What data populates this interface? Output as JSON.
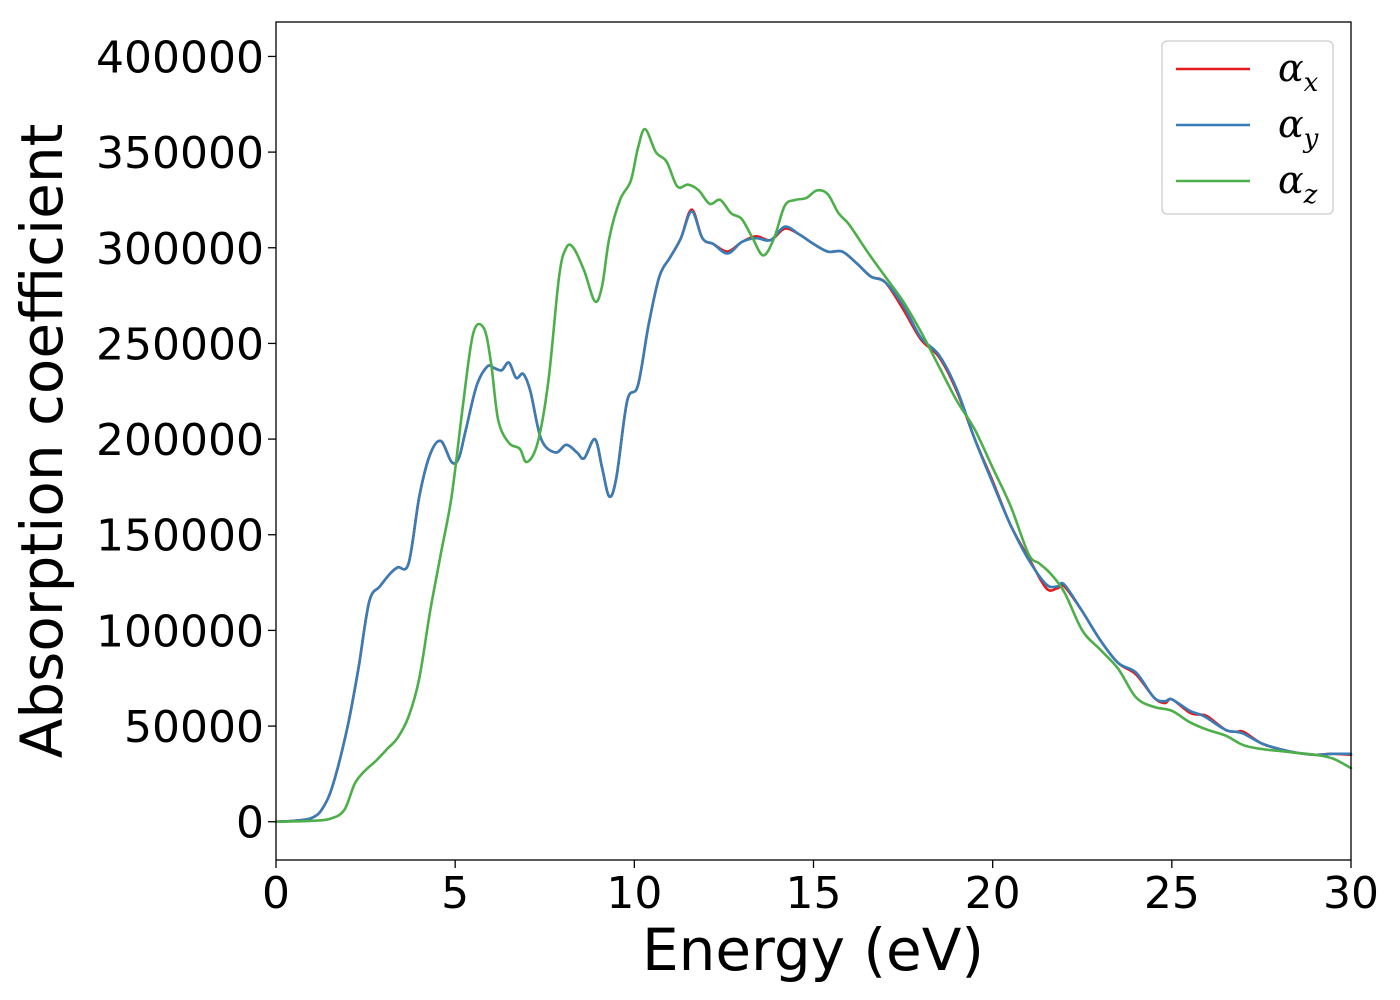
{
  "chart_data": {
    "type": "line",
    "xlabel": "Energy (eV)",
    "ylabel": "Absorption coefficient",
    "xlim": [
      0,
      30
    ],
    "ylim": [
      -20000,
      418000
    ],
    "xticks": [
      0,
      5,
      10,
      15,
      20,
      25,
      30
    ],
    "xtick_labels": [
      "0",
      "5",
      "10",
      "15",
      "20",
      "25",
      "30"
    ],
    "yticks": [
      0,
      50000,
      100000,
      150000,
      200000,
      250000,
      300000,
      350000,
      400000
    ],
    "ytick_labels": [
      "0",
      "50000",
      "100000",
      "150000",
      "200000",
      "250000",
      "300000",
      "350000",
      "400000"
    ],
    "grid": false,
    "legend_position": "top-right",
    "series": [
      {
        "name": "α_x",
        "legend": {
          "base": "α",
          "sub": "x"
        },
        "color": "#e41a1c",
        "x": [
          0,
          0.5,
          1.0,
          1.3,
          1.6,
          2.0,
          2.3,
          2.6,
          2.9,
          3.2,
          3.4,
          3.7,
          4.0,
          4.3,
          4.6,
          4.9,
          5.1,
          5.3,
          5.6,
          5.9,
          6.1,
          6.3,
          6.5,
          6.7,
          6.9,
          7.1,
          7.4,
          7.8,
          8.1,
          8.4,
          8.6,
          8.9,
          9.1,
          9.3,
          9.5,
          9.8,
          10.1,
          10.4,
          10.7,
          11.0,
          11.3,
          11.6,
          11.9,
          12.2,
          12.6,
          13.0,
          13.4,
          13.8,
          14.2,
          14.6,
          15.0,
          15.4,
          15.8,
          16.2,
          16.6,
          17.0,
          17.5,
          18.0,
          18.5,
          19.0,
          19.5,
          20.0,
          20.5,
          21.0,
          21.5,
          21.8,
          22.0,
          22.5,
          23.0,
          23.5,
          24.0,
          24.5,
          24.8,
          25.0,
          25.5,
          25.8,
          26.0,
          26.5,
          26.8,
          27.0,
          27.5,
          28.0,
          28.5,
          29.0,
          29.5,
          30.0
        ],
        "y": [
          0,
          500,
          2000,
          7000,
          20000,
          50000,
          80000,
          115000,
          123000,
          130000,
          133000,
          135000,
          170000,
          192000,
          199000,
          188000,
          190000,
          205000,
          228000,
          238000,
          237000,
          236000,
          240000,
          232000,
          234000,
          225000,
          200000,
          193000,
          197000,
          193000,
          190000,
          200000,
          185000,
          170000,
          180000,
          220000,
          228000,
          260000,
          285000,
          295000,
          305000,
          320000,
          305000,
          302000,
          298000,
          303000,
          306000,
          304000,
          310000,
          307000,
          302000,
          298000,
          298000,
          292000,
          285000,
          282000,
          268000,
          252000,
          243000,
          225000,
          200000,
          178000,
          155000,
          138000,
          122000,
          122000,
          123000,
          110000,
          95000,
          83000,
          77000,
          65000,
          62000,
          64000,
          57000,
          56000,
          55000,
          48000,
          47000,
          47000,
          41000,
          38000,
          36000,
          35000,
          35500,
          35000
        ]
      },
      {
        "name": "α_y",
        "legend": {
          "base": "α",
          "sub": "y"
        },
        "color": "#377eb8",
        "x": [
          0,
          0.5,
          1.0,
          1.3,
          1.6,
          2.0,
          2.3,
          2.6,
          2.9,
          3.2,
          3.4,
          3.7,
          4.0,
          4.3,
          4.6,
          4.9,
          5.1,
          5.3,
          5.6,
          5.9,
          6.1,
          6.3,
          6.5,
          6.7,
          6.9,
          7.1,
          7.4,
          7.8,
          8.1,
          8.4,
          8.6,
          8.9,
          9.1,
          9.3,
          9.5,
          9.8,
          10.1,
          10.4,
          10.7,
          11.0,
          11.3,
          11.6,
          11.9,
          12.2,
          12.6,
          13.0,
          13.4,
          13.8,
          14.2,
          14.6,
          15.0,
          15.4,
          15.8,
          16.2,
          16.6,
          17.0,
          17.5,
          18.0,
          18.5,
          19.0,
          19.5,
          20.0,
          20.5,
          21.0,
          21.5,
          21.8,
          22.0,
          22.5,
          23.0,
          23.5,
          24.0,
          24.5,
          24.8,
          25.0,
          25.5,
          25.8,
          26.0,
          26.5,
          26.8,
          27.0,
          27.5,
          28.0,
          28.5,
          29.0,
          29.5,
          30.0
        ],
        "y": [
          0,
          500,
          2000,
          7000,
          20000,
          50000,
          80000,
          115000,
          123000,
          130000,
          133000,
          135000,
          170000,
          192000,
          199000,
          188000,
          190000,
          205000,
          228000,
          238000,
          237000,
          236000,
          240000,
          232000,
          234000,
          225000,
          200000,
          193000,
          197000,
          193000,
          190000,
          200000,
          185000,
          170000,
          180000,
          220000,
          228000,
          260000,
          285000,
          295000,
          305000,
          319000,
          305000,
          302000,
          297000,
          303000,
          305000,
          304000,
          311000,
          307000,
          302000,
          298000,
          298000,
          292000,
          285000,
          282000,
          270000,
          253000,
          244000,
          226000,
          200000,
          177000,
          155000,
          137000,
          124000,
          123000,
          124000,
          110000,
          95000,
          83000,
          78000,
          65000,
          63000,
          64000,
          58000,
          56000,
          54000,
          48000,
          47000,
          46000,
          41000,
          38000,
          36000,
          35000,
          35500,
          35500
        ]
      },
      {
        "name": "α_z",
        "legend": {
          "base": "α",
          "sub": "z"
        },
        "color": "#4daf4a",
        "x": [
          0,
          1.0,
          1.5,
          1.9,
          2.2,
          2.5,
          2.8,
          3.1,
          3.4,
          3.7,
          4.0,
          4.3,
          4.6,
          4.9,
          5.2,
          5.5,
          5.8,
          6.0,
          6.2,
          6.5,
          6.8,
          7.0,
          7.3,
          7.6,
          7.9,
          8.1,
          8.3,
          8.6,
          8.9,
          9.1,
          9.3,
          9.6,
          9.9,
          10.1,
          10.3,
          10.6,
          10.9,
          11.2,
          11.5,
          11.8,
          12.1,
          12.4,
          12.7,
          13.0,
          13.3,
          13.6,
          13.9,
          14.2,
          14.5,
          14.8,
          15.1,
          15.4,
          15.7,
          16.0,
          16.5,
          17.0,
          17.5,
          18.0,
          18.5,
          19.0,
          19.5,
          20.0,
          20.5,
          21.0,
          21.3,
          21.6,
          22.0,
          22.5,
          23.0,
          23.5,
          24.0,
          24.5,
          25.0,
          25.5,
          26.0,
          26.5,
          27.0,
          27.5,
          28.0,
          28.5,
          29.0,
          29.5,
          30.0
        ],
        "y": [
          0,
          500,
          1500,
          6000,
          20000,
          27000,
          32000,
          38000,
          44000,
          55000,
          75000,
          110000,
          140000,
          170000,
          215000,
          255000,
          258000,
          240000,
          210000,
          198000,
          195000,
          188000,
          198000,
          230000,
          285000,
          300000,
          300000,
          288000,
          272000,
          280000,
          305000,
          325000,
          335000,
          352000,
          362000,
          350000,
          345000,
          332000,
          333000,
          330000,
          323000,
          325000,
          318000,
          315000,
          305000,
          296000,
          305000,
          322000,
          325000,
          326000,
          330000,
          328000,
          318000,
          312000,
          298000,
          285000,
          272000,
          256000,
          238000,
          220000,
          205000,
          185000,
          165000,
          140000,
          135000,
          130000,
          120000,
          100000,
          90000,
          80000,
          65000,
          60000,
          58000,
          52000,
          48000,
          45000,
          40000,
          38000,
          37000,
          36000,
          35000,
          33000,
          28000
        ]
      }
    ]
  }
}
